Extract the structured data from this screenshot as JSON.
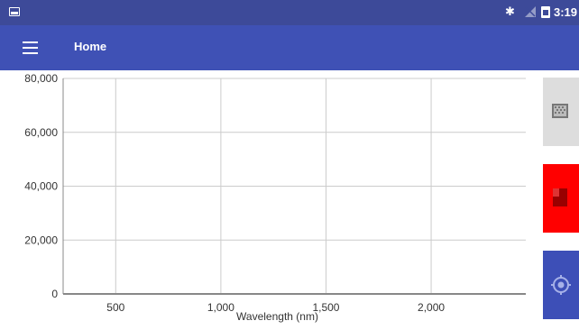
{
  "status_bar": {
    "time": "3:19",
    "icons": [
      "screenshot-icon",
      "bluetooth-icon",
      "no-signal-icon",
      "battery-icon"
    ]
  },
  "app_bar": {
    "title": "Home",
    "menu_icon": "hamburger-menu-icon"
  },
  "side_buttons": [
    {
      "icon": "grid-icon",
      "color": "#dddddd"
    },
    {
      "icon": "document-icon",
      "color": "#ff0000"
    },
    {
      "icon": "target-icon",
      "color": "#3d4fb7"
    }
  ],
  "colors": {
    "status_bar": "#3d4a99",
    "app_bar": "#3f51b5",
    "grid": "#cccccc",
    "axis": "#888888"
  },
  "chart_data": {
    "type": "line",
    "series": [],
    "xlabel": "Wavelength (nm)",
    "ylabel": "",
    "x_ticks": [
      {
        "value": 500,
        "label": "500"
      },
      {
        "value": 1000,
        "label": "1,000"
      },
      {
        "value": 1500,
        "label": "1,500"
      },
      {
        "value": 2000,
        "label": "2,000"
      }
    ],
    "y_ticks": [
      {
        "value": 0,
        "label": "0"
      },
      {
        "value": 20000,
        "label": "20,000"
      },
      {
        "value": 40000,
        "label": "40,000"
      },
      {
        "value": 60000,
        "label": "60,000"
      },
      {
        "value": 80000,
        "label": "80,000"
      }
    ],
    "xlim": [
      250,
      2450
    ],
    "ylim": [
      0,
      80000
    ],
    "grid": true
  }
}
